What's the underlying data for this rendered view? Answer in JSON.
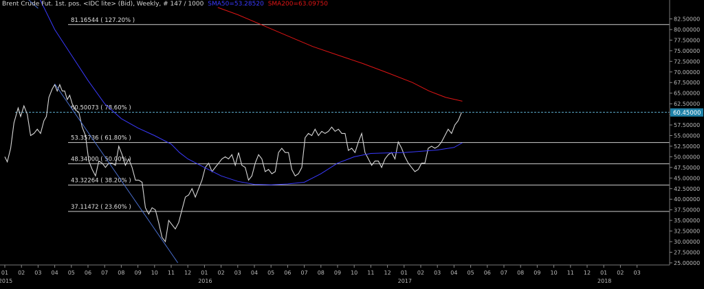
{
  "header": {
    "instrument": "Brent Crude Fut. 1st. pos. <IDC lite> (Bid), Weekly, # 147 / 1000",
    "sma50_label": "SMA50=53.28520",
    "sma200_label": "SMA200=63.09750",
    "instrument_color": "#d8d8d8",
    "sma50_color": "#3a3aff",
    "sma200_color": "#e01515"
  },
  "chart_data": {
    "type": "line",
    "title": "Brent Crude Fut. 1st. pos. <IDC lite> (Bid), Weekly, # 147 / 1000",
    "y_axis": {
      "position": "right",
      "ylim": [
        24.5,
        85.5
      ],
      "ticks": [
        "25.00000",
        "27.50000",
        "30.00000",
        "32.50000",
        "35.00000",
        "37.50000",
        "40.00000",
        "42.50000",
        "45.00000",
        "47.50000",
        "50.00000",
        "52.50000",
        "55.00000",
        "57.50000",
        "60.00000",
        "62.50000",
        "65.00000",
        "67.50000",
        "70.00000",
        "72.50000",
        "75.00000",
        "77.50000",
        "80.00000",
        "82.50000"
      ],
      "last_price_label": "60.45000",
      "last_price": 60.45
    },
    "x_axis": {
      "month_ticks": [
        "01",
        "02",
        "03",
        "04",
        "05",
        "06",
        "07",
        "08",
        "09",
        "10",
        "11",
        "12",
        "01",
        "02",
        "03",
        "04",
        "05",
        "06",
        "07",
        "08",
        "09",
        "10",
        "11",
        "12",
        "01",
        "02",
        "03",
        "04",
        "05",
        "06",
        "07",
        "08",
        "09",
        "10",
        "11",
        "12",
        "01",
        "02",
        "03"
      ],
      "year_labels": [
        {
          "label": "2015",
          "month_index": 0
        },
        {
          "label": "2016",
          "month_index": 12
        },
        {
          "label": "2017",
          "month_index": 24
        },
        {
          "label": "2018",
          "month_index": 36
        }
      ]
    },
    "fib_levels": [
      {
        "label": "81.16544 ( 127.20% )",
        "value": 81.16544
      },
      {
        "label": "60.50073 ( 78.60% )",
        "value": 60.50073
      },
      {
        "label": "53.35736 ( 61.80% )",
        "value": 53.35736
      },
      {
        "label": "48.34000 ( 50.00% )",
        "value": 48.34
      },
      {
        "label": "43.32264 ( 38.20% )",
        "value": 43.32264
      },
      {
        "label": "37.11472 ( 23.60% )",
        "value": 37.11472
      }
    ],
    "series": [
      {
        "name": "Brent Crude Fut. 1st. pos.",
        "color": "#d8d8d8",
        "points": [
          [
            0.0,
            50.0
          ],
          [
            0.15,
            48.8
          ],
          [
            0.35,
            52.0
          ],
          [
            0.55,
            58.0
          ],
          [
            0.8,
            61.5
          ],
          [
            0.95,
            59.5
          ],
          [
            1.15,
            62.0
          ],
          [
            1.35,
            60.0
          ],
          [
            1.55,
            55.0
          ],
          [
            1.75,
            55.5
          ],
          [
            1.95,
            56.5
          ],
          [
            2.15,
            55.5
          ],
          [
            2.35,
            58.5
          ],
          [
            2.5,
            59.5
          ],
          [
            2.65,
            64.0
          ],
          [
            2.85,
            66.0
          ],
          [
            3.0,
            67.0
          ],
          [
            3.15,
            65.5
          ],
          [
            3.3,
            67.0
          ],
          [
            3.45,
            65.5
          ],
          [
            3.6,
            65.5
          ],
          [
            3.75,
            63.5
          ],
          [
            3.9,
            64.5
          ],
          [
            4.05,
            62.5
          ],
          [
            4.25,
            61.0
          ],
          [
            4.45,
            60.5
          ],
          [
            4.65,
            57.0
          ],
          [
            4.85,
            55.0
          ],
          [
            5.05,
            49.0
          ],
          [
            5.25,
            47.0
          ],
          [
            5.45,
            45.5
          ],
          [
            5.65,
            49.0
          ],
          [
            5.85,
            48.5
          ],
          [
            6.05,
            47.5
          ],
          [
            6.25,
            48.5
          ],
          [
            6.45,
            48.5
          ],
          [
            6.65,
            48.0
          ],
          [
            6.85,
            52.5
          ],
          [
            7.05,
            50.5
          ],
          [
            7.25,
            48.0
          ],
          [
            7.45,
            49.5
          ],
          [
            7.65,
            47.5
          ],
          [
            7.85,
            44.5
          ],
          [
            8.05,
            44.5
          ],
          [
            8.25,
            44.0
          ],
          [
            8.45,
            38.0
          ],
          [
            8.65,
            36.5
          ],
          [
            8.85,
            38.0
          ],
          [
            9.05,
            37.5
          ],
          [
            9.25,
            34.5
          ],
          [
            9.45,
            31.0
          ],
          [
            9.65,
            30.0
          ],
          [
            9.85,
            35.0
          ],
          [
            10.05,
            34.0
          ],
          [
            10.25,
            33.0
          ],
          [
            10.45,
            34.5
          ],
          [
            10.65,
            37.5
          ],
          [
            10.85,
            40.5
          ],
          [
            11.05,
            41.0
          ],
          [
            11.25,
            42.5
          ],
          [
            11.45,
            40.5
          ],
          [
            11.65,
            42.5
          ],
          [
            11.85,
            44.5
          ],
          [
            12.05,
            47.5
          ],
          [
            12.25,
            48.5
          ],
          [
            12.45,
            46.5
          ],
          [
            12.65,
            47.5
          ],
          [
            12.85,
            48.5
          ],
          [
            13.05,
            49.5
          ],
          [
            13.25,
            50.0
          ],
          [
            13.45,
            49.5
          ],
          [
            13.65,
            50.5
          ],
          [
            13.85,
            48.0
          ],
          [
            14.05,
            51.0
          ],
          [
            14.25,
            48.0
          ],
          [
            14.45,
            47.5
          ],
          [
            14.65,
            44.5
          ],
          [
            14.85,
            45.5
          ],
          [
            15.05,
            48.5
          ],
          [
            15.25,
            50.5
          ],
          [
            15.45,
            49.5
          ],
          [
            15.65,
            46.5
          ],
          [
            15.85,
            47.0
          ],
          [
            16.05,
            46.0
          ],
          [
            16.25,
            46.5
          ],
          [
            16.45,
            51.0
          ],
          [
            16.65,
            52.0
          ],
          [
            16.85,
            51.0
          ],
          [
            17.05,
            51.0
          ],
          [
            17.25,
            47.0
          ],
          [
            17.45,
            45.5
          ],
          [
            17.65,
            46.0
          ],
          [
            17.85,
            47.5
          ],
          [
            18.05,
            54.5
          ],
          [
            18.25,
            55.5
          ],
          [
            18.45,
            55.0
          ],
          [
            18.65,
            56.5
          ],
          [
            18.85,
            55.0
          ],
          [
            19.05,
            56.0
          ],
          [
            19.25,
            55.5
          ],
          [
            19.45,
            56.0
          ],
          [
            19.65,
            57.0
          ],
          [
            19.85,
            56.0
          ],
          [
            20.05,
            56.5
          ],
          [
            20.25,
            55.5
          ],
          [
            20.45,
            55.5
          ],
          [
            20.65,
            51.5
          ],
          [
            20.85,
            52.0
          ],
          [
            21.05,
            51.0
          ],
          [
            21.25,
            53.5
          ],
          [
            21.45,
            55.5
          ],
          [
            21.65,
            51.0
          ],
          [
            21.85,
            49.5
          ],
          [
            22.05,
            48.0
          ],
          [
            22.25,
            49.0
          ],
          [
            22.45,
            49.0
          ],
          [
            22.65,
            47.5
          ],
          [
            22.85,
            49.5
          ],
          [
            23.05,
            50.5
          ],
          [
            23.25,
            51.0
          ],
          [
            23.45,
            49.5
          ],
          [
            23.65,
            53.5
          ],
          [
            23.85,
            52.0
          ],
          [
            24.05,
            50.0
          ],
          [
            24.25,
            48.5
          ],
          [
            24.45,
            47.5
          ],
          [
            24.65,
            46.5
          ],
          [
            24.85,
            47.0
          ],
          [
            25.05,
            48.5
          ],
          [
            25.25,
            48.5
          ],
          [
            25.45,
            52.0
          ],
          [
            25.65,
            52.5
          ],
          [
            25.85,
            52.0
          ],
          [
            26.05,
            52.5
          ],
          [
            26.25,
            53.5
          ],
          [
            26.45,
            55.0
          ],
          [
            26.65,
            56.5
          ],
          [
            26.85,
            55.5
          ],
          [
            27.05,
            57.5
          ],
          [
            27.25,
            58.5
          ],
          [
            27.45,
            60.45
          ]
        ]
      },
      {
        "name": "SMA50",
        "color": "#3a3aff",
        "points": [
          [
            2.0,
            88.0
          ],
          [
            3.0,
            80.0
          ],
          [
            4.0,
            74.0
          ],
          [
            5.0,
            68.0
          ],
          [
            6.0,
            62.5
          ],
          [
            7.0,
            59.0
          ],
          [
            8.0,
            56.8
          ],
          [
            9.0,
            55.0
          ],
          [
            10.0,
            53.0
          ],
          [
            10.5,
            51.0
          ],
          [
            11.0,
            49.5
          ],
          [
            12.0,
            47.5
          ],
          [
            13.0,
            45.5
          ],
          [
            14.0,
            44.2
          ],
          [
            15.0,
            43.5
          ],
          [
            16.0,
            43.4
          ],
          [
            17.0,
            43.6
          ],
          [
            18.0,
            44.0
          ],
          [
            19.0,
            46.0
          ],
          [
            20.0,
            48.5
          ],
          [
            21.0,
            50.0
          ],
          [
            22.0,
            50.8
          ],
          [
            23.0,
            50.9
          ],
          [
            24.0,
            51.0
          ],
          [
            25.0,
            51.3
          ],
          [
            26.0,
            51.6
          ],
          [
            27.0,
            52.2
          ],
          [
            27.5,
            53.3
          ]
        ]
      },
      {
        "name": "SMA200",
        "color": "#e01515",
        "points": [
          [
            12.8,
            85.2
          ],
          [
            14.0,
            83.5
          ],
          [
            15.5,
            81.0
          ],
          [
            17.0,
            78.5
          ],
          [
            18.5,
            76.0
          ],
          [
            20.0,
            74.0
          ],
          [
            21.5,
            72.0
          ],
          [
            23.0,
            69.8
          ],
          [
            24.5,
            67.5
          ],
          [
            25.5,
            65.5
          ],
          [
            26.5,
            64.0
          ],
          [
            27.5,
            63.1
          ]
        ]
      },
      {
        "name": "trendline-upper",
        "color": "#4a6fcf",
        "points": [
          [
            0.0,
            92.0
          ],
          [
            2.0,
            85.0
          ]
        ]
      },
      {
        "name": "trendline-lower",
        "color": "#4a6fcf",
        "points": [
          [
            3.0,
            67.2
          ],
          [
            10.4,
            25.0
          ]
        ]
      }
    ]
  }
}
